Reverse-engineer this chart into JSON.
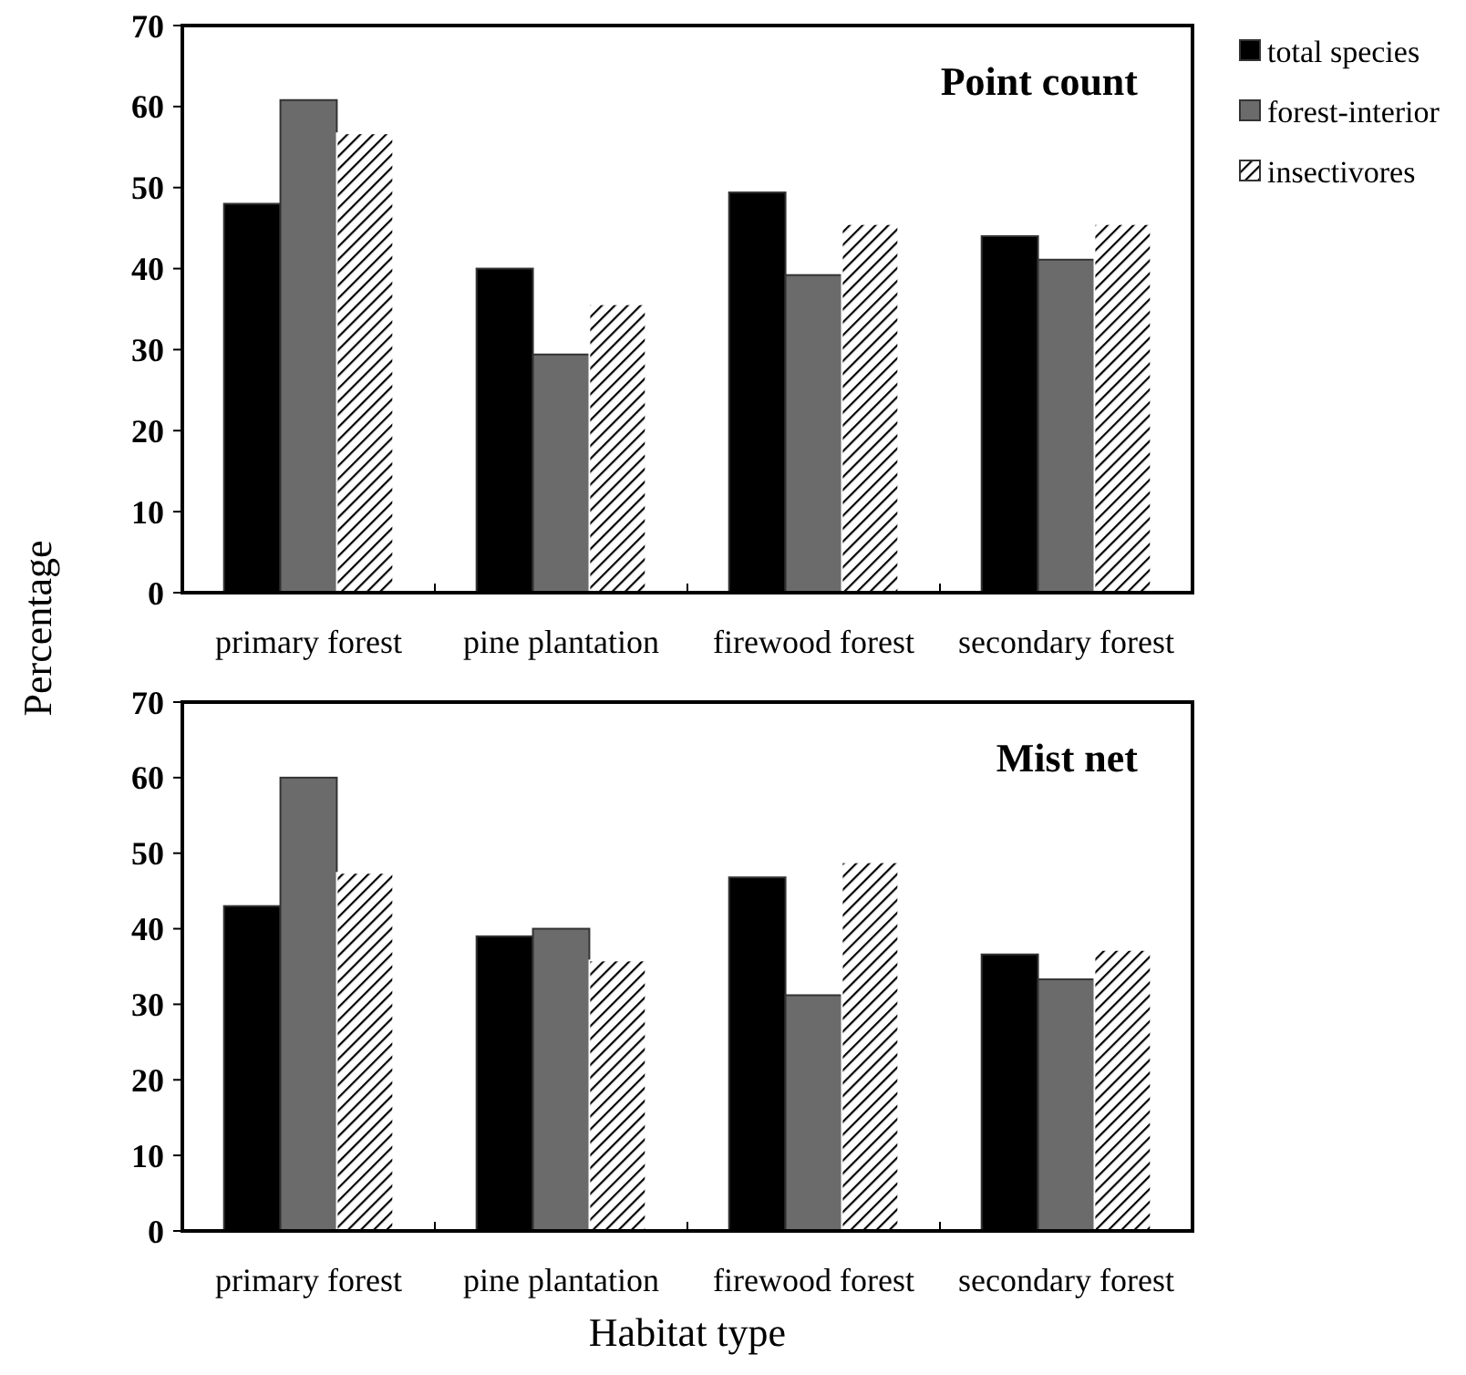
{
  "chart_data": [
    {
      "type": "bar",
      "title": "Point count",
      "ylabel": "Percentage",
      "categories": [
        "primary forest",
        "pine plantation",
        "firewood forest",
        "secondary forest"
      ],
      "series": [
        {
          "name": "total species",
          "color": "#000000",
          "values": [
            48,
            40,
            49.4,
            44
          ]
        },
        {
          "name": "forest-interior",
          "color": "#6b6b6b",
          "values": [
            60.8,
            29.4,
            39.2,
            41.1
          ]
        },
        {
          "name": "insectivores",
          "color": "#ffffff",
          "values": [
            56.7,
            35.6,
            45.5,
            45.5
          ]
        }
      ],
      "ylim": [
        0,
        70
      ],
      "yticks": [
        0,
        10,
        20,
        30,
        40,
        50,
        60,
        70
      ],
      "legend": "top right",
      "grid": false
    },
    {
      "type": "bar",
      "title": "Mist net",
      "xlabel": "Habitat type",
      "categories": [
        "primary forest",
        "pine plantation",
        "firewood forest",
        "secondary forest"
      ],
      "series": [
        {
          "color": "#000000",
          "values": [
            43,
            39,
            46.8,
            36.6
          ]
        },
        {
          "color": "#6b6b6b",
          "values": [
            60,
            40,
            31.2,
            33.3
          ]
        },
        {
          "color": "#ffffff",
          "values": [
            47.4,
            35.8,
            48.8,
            37.2
          ]
        }
      ],
      "ylim": [
        0,
        70
      ],
      "yticks": [
        0,
        10,
        20,
        30,
        40,
        50,
        60,
        70
      ],
      "grid": false
    }
  ]
}
